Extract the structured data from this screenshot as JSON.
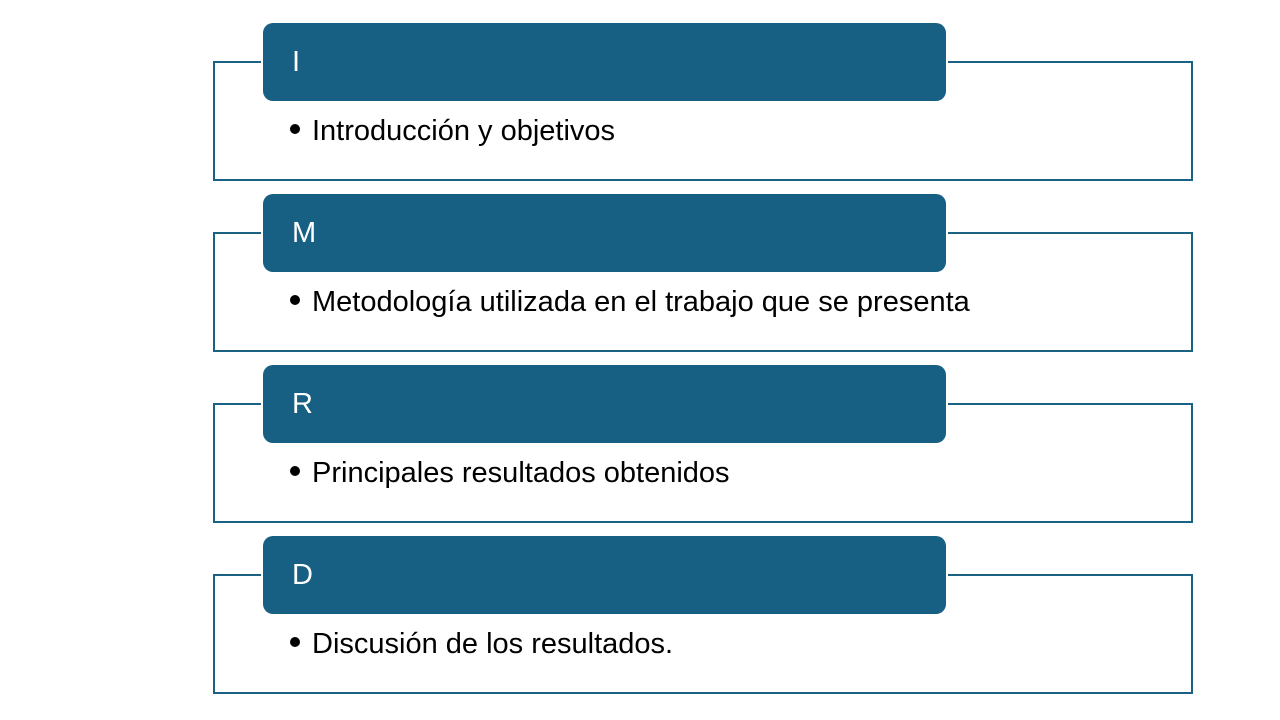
{
  "colors": {
    "header_fill": "#176083",
    "outline": "#1a6183",
    "header_text": "#ffffff"
  },
  "blocks": [
    {
      "letter": "I",
      "text": "Introducción y objetivos"
    },
    {
      "letter": "M",
      "text": "Metodología utilizada en el trabajo que se presenta"
    },
    {
      "letter": "R",
      "text": "Principales resultados obtenidos"
    },
    {
      "letter": "D",
      "text": "Discusión de los resultados."
    }
  ]
}
